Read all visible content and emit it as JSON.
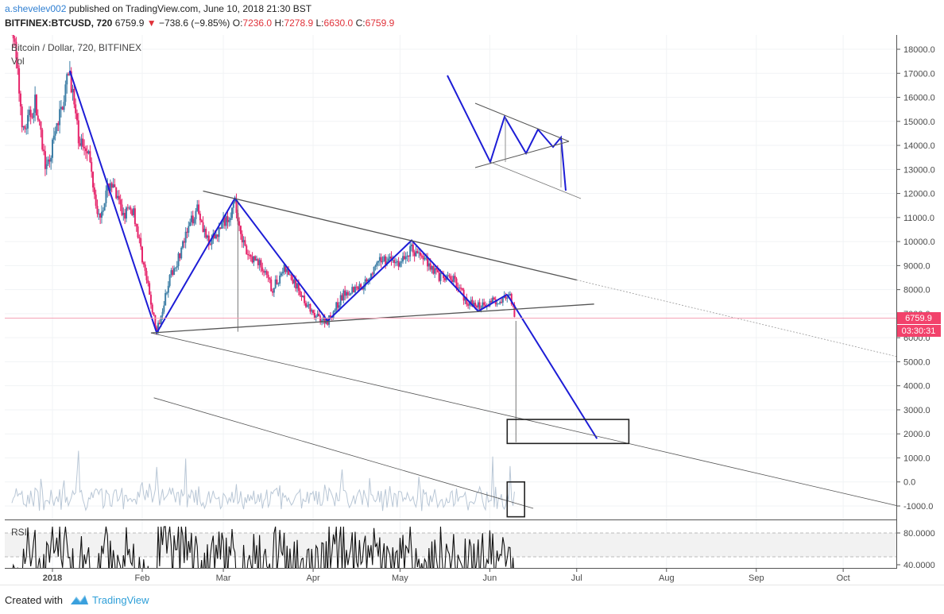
{
  "header": {
    "author": "a.shevelev002",
    "published_text": " published on TradingView.com, June 10, 2018 21:30 BST",
    "ticker": "BITFINEX:BTCUSD, 720",
    "last_price": "6759.9",
    "change": "−738.6 (−9.85%)",
    "o_label": "O:",
    "o_value": "7236.0",
    "h_label": "H:",
    "h_value": "7278.9",
    "l_label": "L:",
    "l_value": "6630.0",
    "c_label": "C:",
    "c_value": "6759.9"
  },
  "chart_data": {
    "type": "candlestick",
    "title": "Bitcoin / Dollar, 720, BITFINEX",
    "volume_label": "Vol",
    "rsi_label": "RSI",
    "price_axis_ticks": [
      "18000.0",
      "17000.0",
      "16000.0",
      "15000.0",
      "14000.0",
      "13000.0",
      "12000.0",
      "11000.0",
      "10000.0",
      "9000.0",
      "8000.0",
      "7000.0",
      "6000.0",
      "5000.0",
      "4000.0",
      "3000.0",
      "2000.0",
      "1000.0",
      "0.0",
      "-1000.0"
    ],
    "price_axis_values": [
      18000,
      17000,
      16000,
      15000,
      14000,
      13000,
      12000,
      11000,
      10000,
      9000,
      8000,
      7000,
      6000,
      5000,
      4000,
      3000,
      2000,
      1000,
      0,
      -1000
    ],
    "rsi_axis_ticks": [
      "80.0000",
      "40.0000"
    ],
    "rsi_axis_values": [
      80,
      40
    ],
    "time_axis_ticks": [
      "2018",
      "Feb",
      "Mar",
      "Apr",
      "May",
      "Jun",
      "Jul",
      "Aug",
      "Sep",
      "Oct"
    ],
    "last_price_label": "6759.9",
    "countdown_label": "03:30:31",
    "price_anchor_points": [
      [
        "2017-12-18",
        19200
      ],
      [
        "2017-12-22",
        14500
      ],
      [
        "2017-12-26",
        15800
      ],
      [
        "2017-12-30",
        12900
      ],
      [
        "2018-01-03",
        15000
      ],
      [
        "2018-01-07",
        17100
      ],
      [
        "2018-01-10",
        14200
      ],
      [
        "2018-01-13",
        14000
      ],
      [
        "2018-01-17",
        11000
      ],
      [
        "2018-01-21",
        12500
      ],
      [
        "2018-01-25",
        11200
      ],
      [
        "2018-01-29",
        11300
      ],
      [
        "2018-02-02",
        8700
      ],
      [
        "2018-02-06",
        6200
      ],
      [
        "2018-02-10",
        8300
      ],
      [
        "2018-02-14",
        9500
      ],
      [
        "2018-02-20",
        11500
      ],
      [
        "2018-02-24",
        9800
      ],
      [
        "2018-03-01",
        10800
      ],
      [
        "2018-03-05",
        11500
      ],
      [
        "2018-03-09",
        9400
      ],
      [
        "2018-03-13",
        9200
      ],
      [
        "2018-03-18",
        8000
      ],
      [
        "2018-03-22",
        8900
      ],
      [
        "2018-03-28",
        7800
      ],
      [
        "2018-04-01",
        6900
      ],
      [
        "2018-04-06",
        6700
      ],
      [
        "2018-04-12",
        7900
      ],
      [
        "2018-04-18",
        8200
      ],
      [
        "2018-04-25",
        9300
      ],
      [
        "2018-05-01",
        9100
      ],
      [
        "2018-05-05",
        9700
      ],
      [
        "2018-05-10",
        9200
      ],
      [
        "2018-05-15",
        8500
      ],
      [
        "2018-05-20",
        8400
      ],
      [
        "2018-05-24",
        7500
      ],
      [
        "2018-05-28",
        7300
      ],
      [
        "2018-06-01",
        7500
      ],
      [
        "2018-06-05",
        7600
      ],
      [
        "2018-06-08",
        7650
      ],
      [
        "2018-06-10",
        6760
      ]
    ],
    "ylim": [
      -1400,
      19500
    ],
    "rsi_ylim": [
      10,
      95
    ],
    "projection_target": 1800,
    "grid": true
  },
  "colors": {
    "up": "#3d7ea6",
    "down": "#e6256b",
    "pattern": "#1d1dd6",
    "trendline": "#555555",
    "last_price_badge": "#f2426b",
    "rsi_line": "#111111",
    "volume": "#b9c7d6"
  },
  "footer": {
    "created_with": "Created with",
    "brand": "TradingView"
  }
}
